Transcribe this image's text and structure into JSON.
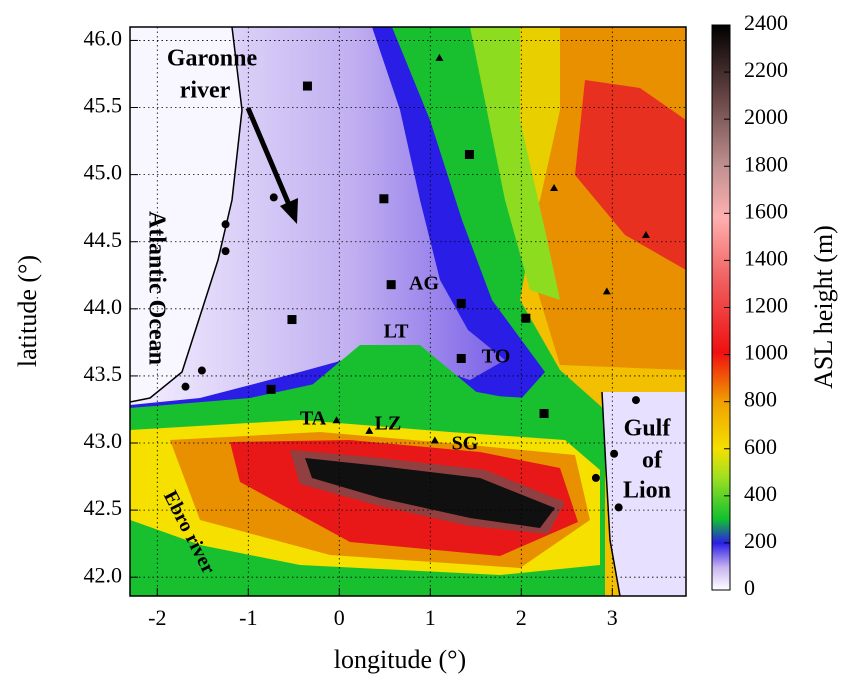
{
  "chart_data": {
    "type": "map",
    "xlabel": "longitude (°)",
    "ylabel": "latitude (°)",
    "xlim": [
      -2.3,
      3.81
    ],
    "ylim": [
      41.86,
      46.1
    ],
    "xticks": [
      -2,
      -1,
      0,
      1,
      2,
      3
    ],
    "yticks": [
      {
        "value": 42,
        "label": "42.0"
      },
      42.5,
      {
        "value": 43,
        "label": "43.0"
      },
      43.5,
      {
        "value": 44,
        "label": "44.0"
      },
      44.5,
      {
        "value": 45,
        "label": "45.0"
      },
      45.5,
      {
        "value": 46,
        "label": "46.0"
      }
    ],
    "grid": true,
    "colorbar": {
      "label": "ASL height (m)",
      "lim": [
        0,
        2400
      ],
      "ticks": [
        0,
        200,
        400,
        600,
        800,
        1000,
        1200,
        1400,
        1600,
        1800,
        2000,
        2200,
        2400
      ]
    },
    "annotations": [
      "Garonne",
      "river",
      "Atlantic Ocean",
      "AG",
      "LT",
      "TO",
      "TA",
      "LZ",
      "SG",
      "Gulf",
      "of",
      "Lion",
      "Ebro river"
    ],
    "markers": [
      {
        "shape": "square",
        "x": [
          -0.35,
          1.43,
          0.49,
          0.57,
          1.34,
          -0.52,
          2.05,
          1.34,
          -0.75,
          2.25
        ],
        "y": [
          45.66,
          45.15,
          44.82,
          44.18,
          44.04,
          43.92,
          43.93,
          43.63,
          43.4,
          43.22
        ]
      },
      {
        "shape": "circle",
        "x": [
          -0.72,
          -1.25,
          -1.25,
          -1.51,
          -1.69,
          3.26,
          3.02,
          2.82,
          3.07
        ],
        "y": [
          44.83,
          44.63,
          44.43,
          43.54,
          43.42,
          43.32,
          42.92,
          42.74,
          42.52
        ]
      },
      {
        "shape": "triangle",
        "x": [
          1.1,
          2.36,
          3.37,
          2.94,
          -0.03,
          0.33,
          1.05
        ],
        "y": [
          45.87,
          44.9,
          44.55,
          44.13,
          43.17,
          43.09,
          43.02
        ]
      }
    ]
  }
}
